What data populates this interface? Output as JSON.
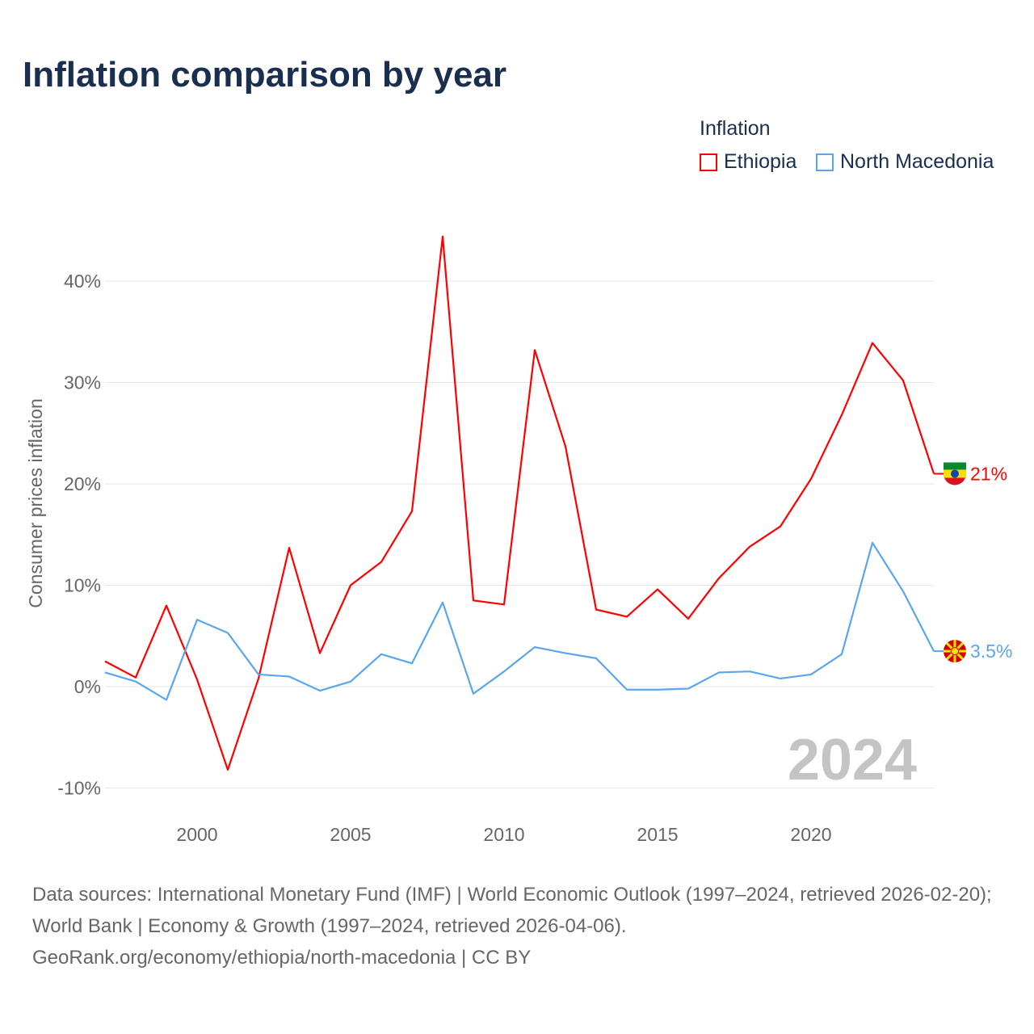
{
  "title": "Inflation comparison by year",
  "chart_data": {
    "type": "line",
    "title": "Inflation comparison by year",
    "xlabel": "",
    "ylabel": "Consumer prices inflation",
    "legend_title": "Inflation",
    "legend_position": "top-right",
    "xlim": [
      1997,
      2024
    ],
    "ylim": [
      -12,
      46
    ],
    "x_ticks": [
      "2000",
      "2005",
      "2010",
      "2015",
      "2020"
    ],
    "x_tick_values": [
      2000,
      2005,
      2010,
      2015,
      2020
    ],
    "y_ticks": [
      "-10%",
      "0%",
      "10%",
      "20%",
      "30%",
      "40%"
    ],
    "y_tick_values": [
      -10,
      0,
      10,
      20,
      30,
      40
    ],
    "grid": true,
    "year_watermark": "2024",
    "x": [
      1997,
      1998,
      1999,
      2000,
      2001,
      2002,
      2003,
      2004,
      2005,
      2006,
      2007,
      2008,
      2009,
      2010,
      2011,
      2012,
      2013,
      2014,
      2015,
      2016,
      2017,
      2018,
      2019,
      2020,
      2021,
      2022,
      2023,
      2024
    ],
    "series": [
      {
        "name": "Ethiopia",
        "color": "#ff0000",
        "end_label": "21%",
        "values": [
          2.5,
          0.9,
          8.0,
          0.7,
          -8.2,
          0.8,
          13.7,
          3.3,
          10.0,
          12.3,
          17.3,
          44.4,
          8.5,
          8.1,
          33.2,
          23.7,
          7.6,
          6.9,
          9.6,
          6.7,
          10.7,
          13.8,
          15.8,
          20.5,
          26.8,
          33.9,
          30.2,
          21.0
        ]
      },
      {
        "name": "North Macedonia",
        "color": "#5aa6ee",
        "end_label": "3.5%",
        "values": [
          1.4,
          0.5,
          -1.3,
          6.6,
          5.3,
          1.2,
          1.0,
          -0.4,
          0.5,
          3.2,
          2.3,
          8.3,
          -0.7,
          1.5,
          3.9,
          3.3,
          2.8,
          -0.3,
          -0.3,
          -0.2,
          1.4,
          1.5,
          0.8,
          1.2,
          3.2,
          14.2,
          9.4,
          3.5
        ]
      }
    ]
  },
  "source": {
    "line1": "Data sources: International Monetary Fund (IMF) | World Economic Outlook (1997–2024, retrieved 2026-02-20); World Bank | Economy & Growth (1997–2024, retrieved 2026-04-06).",
    "line2": "GeoRank.org/economy/ethiopia/north-macedonia | CC BY"
  }
}
